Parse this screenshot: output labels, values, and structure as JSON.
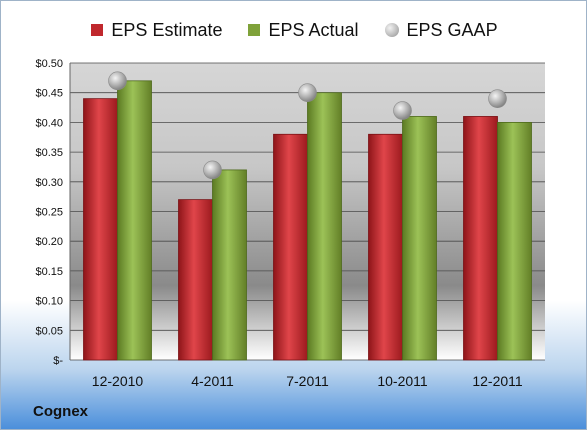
{
  "company_label": "Cognex",
  "legend": {
    "estimate": "EPS Estimate",
    "actual": "EPS Actual",
    "gaap": "EPS GAAP"
  },
  "colors": {
    "estimate": "#c0282d",
    "actual": "#7fa23a",
    "gaap": "#b0b0b0"
  },
  "chart_data": {
    "type": "bar",
    "categories": [
      "12-2010",
      "4-2011",
      "7-2011",
      "10-2011",
      "12-2011"
    ],
    "series": [
      {
        "name": "EPS Estimate",
        "type": "bar",
        "values": [
          0.44,
          0.27,
          0.38,
          0.38,
          0.41
        ]
      },
      {
        "name": "EPS Actual",
        "type": "bar",
        "values": [
          0.47,
          0.32,
          0.45,
          0.41,
          0.4
        ]
      },
      {
        "name": "EPS GAAP",
        "type": "scatter",
        "values": [
          0.47,
          0.32,
          0.45,
          0.42,
          0.44
        ]
      }
    ],
    "ylim": [
      0,
      0.5
    ],
    "yticks": [
      0,
      0.05,
      0.1,
      0.15,
      0.2,
      0.25,
      0.3,
      0.35,
      0.4,
      0.45,
      0.5
    ],
    "ytick_labels": [
      "$-",
      "$0.05",
      "$0.10",
      "$0.15",
      "$0.20",
      "$0.25",
      "$0.30",
      "$0.35",
      "$0.40",
      "$0.45",
      "$0.50"
    ],
    "grid": true,
    "legend_position": "top"
  }
}
